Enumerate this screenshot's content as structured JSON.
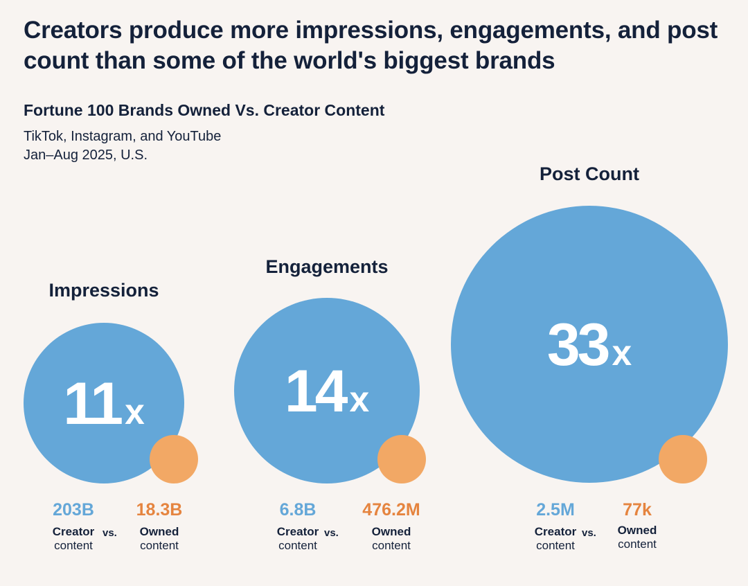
{
  "title": "Creators produce more impressions, engagements, and post count than some of the world's biggest brands",
  "subtitle": "Fortune 100 Brands Owned Vs. Creator Content",
  "platforms": "TikTok, Instagram, and YouTube",
  "period": "Jan–Aug 2025, U.S.",
  "colors": {
    "creator": "#64a7d8",
    "owned": "#f2a865",
    "owned_text": "#e5843f",
    "text": "#14213a",
    "background": "#f8f4f1"
  },
  "chart_data": {
    "type": "bubble",
    "metrics": [
      {
        "name": "Impressions",
        "multiplier": "11",
        "suffix": "x",
        "creator_value": "203B",
        "owned_value": "18.3B"
      },
      {
        "name": "Engagements",
        "multiplier": "14",
        "suffix": "x",
        "creator_value": "6.8B",
        "owned_value": "476.2M"
      },
      {
        "name": "Post Count",
        "multiplier": "33",
        "suffix": "x",
        "creator_value": "2.5M",
        "owned_value": "77k"
      }
    ],
    "creator_label_1": "Creator",
    "owned_label_1": "Owned",
    "label_2": "content",
    "vs": "vs."
  }
}
